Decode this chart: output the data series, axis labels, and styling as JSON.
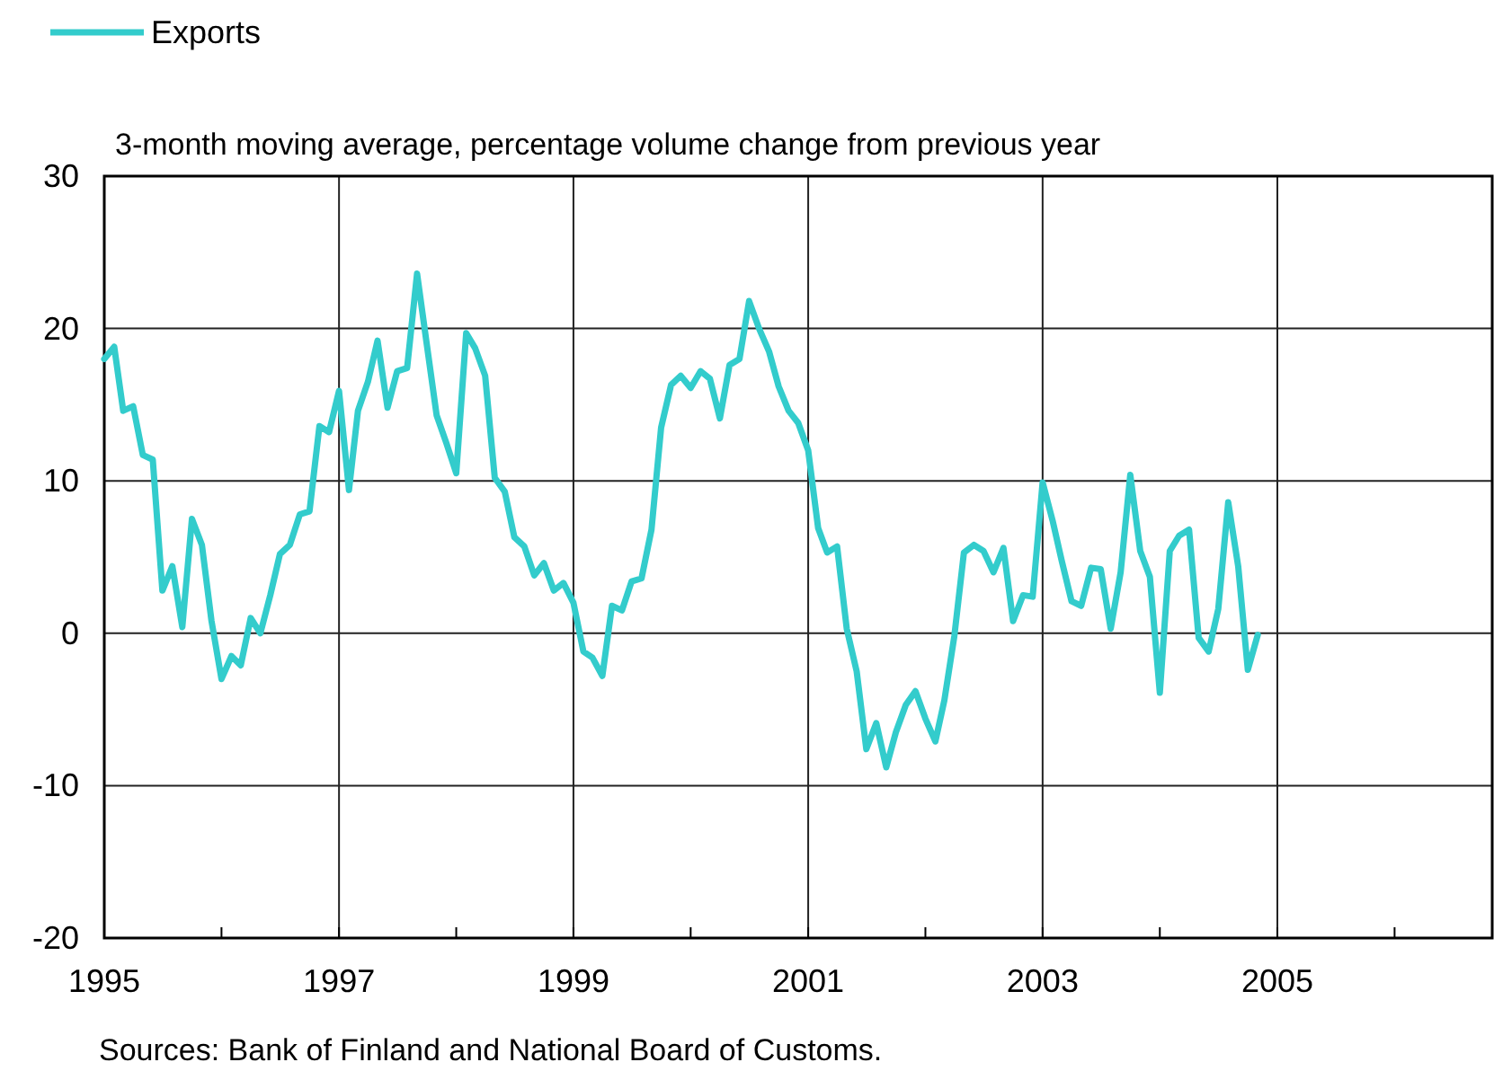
{
  "chart_data": {
    "type": "line",
    "ylabel": "3-month moving average, percentage volume change from previous year",
    "annotations": [
      "Sources: Bank of Finland and National Board of Customs."
    ],
    "x": [
      "1995-01",
      "1995-02",
      "1995-03",
      "1995-04",
      "1995-05",
      "1995-06",
      "1995-07",
      "1995-08",
      "1995-09",
      "1995-10",
      "1995-11",
      "1995-12",
      "1996-01",
      "1996-02",
      "1996-03",
      "1996-04",
      "1996-05",
      "1996-06",
      "1996-07",
      "1996-08",
      "1996-09",
      "1996-10",
      "1996-11",
      "1996-12",
      "1997-01",
      "1997-02",
      "1997-03",
      "1997-04",
      "1997-05",
      "1997-06",
      "1997-07",
      "1997-08",
      "1997-09",
      "1997-10",
      "1997-11",
      "1997-12",
      "1998-01",
      "1998-02",
      "1998-03",
      "1998-04",
      "1998-05",
      "1998-06",
      "1998-07",
      "1998-08",
      "1998-09",
      "1998-10",
      "1998-11",
      "1998-12",
      "1999-01",
      "1999-02",
      "1999-03",
      "1999-04",
      "1999-05",
      "1999-06",
      "1999-07",
      "1999-08",
      "1999-09",
      "1999-10",
      "1999-11",
      "1999-12",
      "2000-01",
      "2000-02",
      "2000-03",
      "2000-04",
      "2000-05",
      "2000-06",
      "2000-07",
      "2000-08",
      "2000-09",
      "2000-10",
      "2000-11",
      "2000-12",
      "2001-01",
      "2001-02",
      "2001-03",
      "2001-04",
      "2001-05",
      "2001-06",
      "2001-07",
      "2001-08",
      "2001-09",
      "2001-10",
      "2001-11",
      "2001-12",
      "2002-01",
      "2002-02",
      "2002-03",
      "2002-04",
      "2002-05",
      "2002-06",
      "2002-07",
      "2002-08",
      "2002-09",
      "2002-10",
      "2002-11",
      "2002-12",
      "2003-01",
      "2003-02",
      "2003-03",
      "2003-04",
      "2003-05",
      "2003-06",
      "2003-07",
      "2003-08",
      "2003-09",
      "2003-10",
      "2003-11",
      "2003-12",
      "2004-01",
      "2004-02",
      "2004-03",
      "2004-04",
      "2004-05",
      "2004-06",
      "2004-07",
      "2004-08",
      "2004-09",
      "2004-10",
      "2004-11"
    ],
    "series": [
      {
        "name": "Exports",
        "color": "#33cccc",
        "values": [
          18,
          18.8,
          14.6,
          14.9,
          11.7,
          11.4,
          2.8,
          4.4,
          0.4,
          7.5,
          5.8,
          0.8,
          -3,
          -1.5,
          -2.1,
          1,
          0,
          2.5,
          5.2,
          5.8,
          7.8,
          8,
          13.6,
          13.2,
          15.9,
          9.4,
          14.6,
          16.5,
          19.2,
          14.8,
          17.2,
          17.4,
          23.6,
          19,
          14.3,
          12.5,
          10.5,
          19.7,
          18.7,
          16.9,
          10.2,
          9.3,
          6.3,
          5.7,
          3.8,
          4.6,
          2.8,
          3.3,
          2,
          -1.2,
          -1.6,
          -2.8,
          1.8,
          1.5,
          3.4,
          3.6,
          6.8,
          13.5,
          16.3,
          16.9,
          16.1,
          17.2,
          16.7,
          14.1,
          17.6,
          18,
          21.8,
          20,
          18.5,
          16.2,
          14.6,
          13.8,
          12,
          6.9,
          5.3,
          5.7,
          0.3,
          -2.5,
          -7.6,
          -5.9,
          -8.8,
          -6.5,
          -4.7,
          -3.8,
          -5.6,
          -7.1,
          -4.4,
          -0.2,
          5.3,
          5.8,
          5.4,
          4,
          5.6,
          0.8,
          2.5,
          2.4,
          9.9,
          7.4,
          4.8,
          2.1,
          1.8,
          4.3,
          4.2,
          0.3,
          4,
          10.4,
          5.4,
          3.7,
          -3.9,
          5.4,
          6.4,
          6.8,
          -0.3,
          -1.2,
          1.6,
          8.6,
          4.4,
          -2.4,
          -0.1
        ]
      }
    ],
    "xlim": [
      "1995-01",
      "2006-11"
    ],
    "xticks": [
      {
        "value": "1995",
        "label": "1995"
      },
      {
        "value": "1996",
        "label": null
      },
      {
        "value": "1997",
        "label": "1997"
      },
      {
        "value": "1998",
        "label": null
      },
      {
        "value": "1999",
        "label": "1999"
      },
      {
        "value": "2000",
        "label": null
      },
      {
        "value": "2001",
        "label": "2001"
      },
      {
        "value": "2002",
        "label": null
      },
      {
        "value": "2003",
        "label": "2003"
      },
      {
        "value": "2004",
        "label": null
      },
      {
        "value": "2005",
        "label": "2005"
      },
      {
        "value": "2006",
        "label": null
      }
    ],
    "ylim": [
      -20,
      30
    ],
    "yticks": [
      -20,
      -10,
      0,
      10,
      20,
      30
    ],
    "grid": true,
    "legend": "top left",
    "line_style": "solid",
    "marker": "none"
  }
}
